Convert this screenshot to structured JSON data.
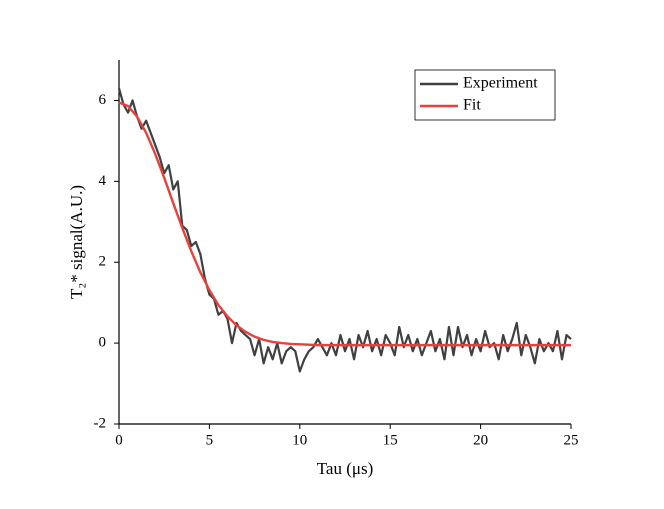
{
  "chart_data": {
    "type": "line",
    "xlabel": "Tau (μs)",
    "ylabel": "T₂* signal(A.U.)",
    "xlim": [
      0,
      25
    ],
    "xticks": [
      0,
      5,
      10,
      15,
      20,
      25
    ],
    "ylim": [
      -2,
      7
    ],
    "yticks": [
      -2,
      0,
      2,
      4,
      6
    ],
    "legend": "upper right",
    "series": [
      {
        "name": "Experiment",
        "color": "#404040",
        "x": [
          0,
          0.25,
          0.5,
          0.75,
          1,
          1.25,
          1.5,
          1.75,
          2,
          2.25,
          2.5,
          2.75,
          3,
          3.25,
          3.5,
          3.75,
          4,
          4.25,
          4.5,
          4.75,
          5,
          5.25,
          5.5,
          5.75,
          6,
          6.25,
          6.5,
          6.75,
          7,
          7.25,
          7.5,
          7.75,
          8,
          8.25,
          8.5,
          8.75,
          9,
          9.25,
          9.5,
          9.75,
          10,
          10.25,
          10.5,
          10.75,
          11,
          11.25,
          11.5,
          11.75,
          12,
          12.25,
          12.5,
          12.75,
          13,
          13.25,
          13.5,
          13.75,
          14,
          14.25,
          14.5,
          14.75,
          15,
          15.25,
          15.5,
          15.75,
          16,
          16.25,
          16.5,
          16.75,
          17,
          17.25,
          17.5,
          17.75,
          18,
          18.25,
          18.5,
          18.75,
          19,
          19.25,
          19.5,
          19.75,
          20,
          20.25,
          20.5,
          20.75,
          21,
          21.25,
          21.5,
          21.75,
          22,
          22.25,
          22.5,
          22.75,
          23,
          23.25,
          23.5,
          23.75,
          24,
          24.25,
          24.5,
          24.75,
          25
        ],
        "values": [
          6.3,
          5.9,
          5.7,
          6.0,
          5.6,
          5.3,
          5.5,
          5.2,
          4.9,
          4.6,
          4.2,
          4.4,
          3.8,
          4.0,
          2.9,
          2.8,
          2.4,
          2.5,
          2.2,
          1.6,
          1.2,
          1.1,
          0.7,
          0.8,
          0.6,
          0.0,
          0.5,
          0.3,
          0.2,
          0.1,
          -0.3,
          0.1,
          -0.5,
          -0.1,
          -0.4,
          0.0,
          -0.5,
          -0.2,
          -0.1,
          -0.2,
          -0.7,
          -0.4,
          -0.2,
          -0.1,
          0.1,
          -0.1,
          -0.3,
          0.0,
          -0.3,
          0.2,
          -0.2,
          0.1,
          -0.4,
          0.2,
          -0.1,
          0.3,
          -0.2,
          0.1,
          -0.3,
          0.2,
          0.0,
          -0.3,
          0.4,
          -0.1,
          0.2,
          -0.2,
          0.1,
          -0.3,
          0.0,
          0.3,
          -0.2,
          0.1,
          -0.4,
          0.4,
          -0.3,
          0.4,
          -0.1,
          0.2,
          -0.3,
          0.1,
          -0.2,
          0.3,
          -0.1,
          0.0,
          -0.4,
          0.2,
          -0.2,
          0.1,
          0.5,
          -0.3,
          0.2,
          -0.1,
          -0.5,
          0.1,
          -0.2,
          0.0,
          -0.2,
          0.3,
          -0.4,
          0.2,
          0.1
        ]
      },
      {
        "name": "Fit",
        "color": "#e8403a",
        "x": [
          0,
          0.5,
          1,
          1.5,
          2,
          2.5,
          3,
          3.5,
          4,
          4.5,
          5,
          5.5,
          6,
          6.5,
          7,
          7.5,
          8,
          8.5,
          9,
          9.5,
          10,
          10.5,
          11,
          12,
          13,
          14,
          15,
          16,
          17,
          18,
          19,
          20,
          21,
          22,
          23,
          24,
          25
        ],
        "values": [
          5.95,
          5.86,
          5.6,
          5.2,
          4.68,
          4.09,
          3.46,
          2.85,
          2.27,
          1.75,
          1.31,
          0.94,
          0.66,
          0.44,
          0.28,
          0.16,
          0.08,
          0.03,
          0.0,
          -0.02,
          -0.03,
          -0.04,
          -0.05,
          -0.05,
          -0.05,
          -0.05,
          -0.05,
          -0.05,
          -0.05,
          -0.05,
          -0.05,
          -0.05,
          -0.05,
          -0.05,
          -0.05,
          -0.05,
          -0.05
        ]
      }
    ]
  }
}
